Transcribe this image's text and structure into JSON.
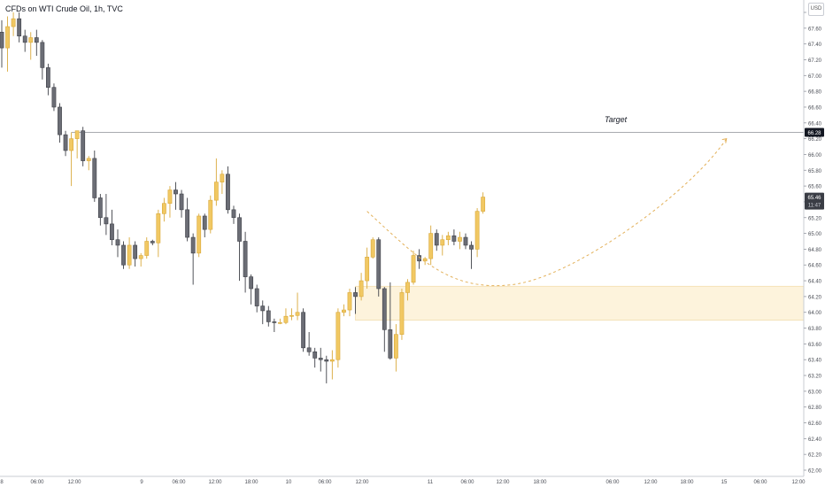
{
  "symbol": "CFDs on WTI Crude Oil, 1h, TVC",
  "currency": "USD",
  "target_label": "Target",
  "colors": {
    "up": "#f1c863",
    "up_border": "#d9a93a",
    "down": "#6b6d75",
    "down_border": "#3f4148",
    "zone_fill": "#fdf3dc",
    "zone_border": "#f2ddb0",
    "target_line": "#8c8f96",
    "projection": "#e3b15a",
    "price_badge": "#3a3d45",
    "target_badge": "#131722"
  },
  "chart_data": {
    "type": "candlestick",
    "title": "CFDs on WTI Crude Oil, 1h, TVC",
    "ylim": [
      62.0,
      67.8
    ],
    "y_ticks": [
      "62.00",
      "62.20",
      "62.40",
      "62.60",
      "62.80",
      "63.00",
      "63.20",
      "63.40",
      "63.60",
      "63.80",
      "64.00",
      "64.20",
      "64.40",
      "64.60",
      "64.80",
      "65.00",
      "65.20",
      "65.40",
      "65.60",
      "65.80",
      "66.00",
      "66.20",
      "66.40",
      "66.60",
      "66.80",
      "67.00",
      "67.20",
      "67.40",
      "67.60",
      "67.80"
    ],
    "x_ticks": [
      "8",
      "06:00",
      "12:00",
      "9",
      "06:00",
      "12:00",
      "18:00",
      "10",
      "06:00",
      "12:00",
      "11",
      "06:00",
      "12:00",
      "18:00",
      "06:00",
      "12:00",
      "18:00",
      "15",
      "06:00",
      "12:00"
    ],
    "target_price": "66.28",
    "current_price": "65.46",
    "countdown": "11:47",
    "demand_zone": {
      "low": 63.9,
      "high": 64.33
    },
    "candles": [
      {
        "o": 67.55,
        "h": 67.7,
        "l": 67.1,
        "c": 67.35
      },
      {
        "o": 67.35,
        "h": 67.75,
        "l": 67.05,
        "c": 67.62
      },
      {
        "o": 67.62,
        "h": 67.8,
        "l": 67.5,
        "c": 67.72
      },
      {
        "o": 67.72,
        "h": 67.8,
        "l": 67.42,
        "c": 67.5
      },
      {
        "o": 67.5,
        "h": 67.58,
        "l": 67.3,
        "c": 67.42
      },
      {
        "o": 67.42,
        "h": 67.55,
        "l": 67.2,
        "c": 67.48
      },
      {
        "o": 67.48,
        "h": 67.58,
        "l": 67.25,
        "c": 67.42
      },
      {
        "o": 67.42,
        "h": 67.45,
        "l": 66.95,
        "c": 67.1
      },
      {
        "o": 67.1,
        "h": 67.15,
        "l": 66.75,
        "c": 66.85
      },
      {
        "o": 66.85,
        "h": 66.9,
        "l": 66.55,
        "c": 66.6
      },
      {
        "o": 66.6,
        "h": 66.65,
        "l": 66.15,
        "c": 66.25
      },
      {
        "o": 66.25,
        "h": 66.3,
        "l": 65.98,
        "c": 66.05
      },
      {
        "o": 66.05,
        "h": 66.28,
        "l": 65.6,
        "c": 66.2
      },
      {
        "o": 66.2,
        "h": 66.28,
        "l": 65.95,
        "c": 66.3
      },
      {
        "o": 66.3,
        "h": 66.35,
        "l": 65.85,
        "c": 65.92
      },
      {
        "o": 65.92,
        "h": 65.98,
        "l": 65.8,
        "c": 65.95
      },
      {
        "o": 65.95,
        "h": 66.05,
        "l": 65.4,
        "c": 65.45
      },
      {
        "o": 65.45,
        "h": 65.5,
        "l": 65.1,
        "c": 65.2
      },
      {
        "o": 65.2,
        "h": 65.5,
        "l": 64.98,
        "c": 65.12
      },
      {
        "o": 65.12,
        "h": 65.3,
        "l": 64.85,
        "c": 64.92
      },
      {
        "o": 64.92,
        "h": 65.05,
        "l": 64.7,
        "c": 64.85
      },
      {
        "o": 64.85,
        "h": 64.9,
        "l": 64.55,
        "c": 64.6
      },
      {
        "o": 64.6,
        "h": 64.95,
        "l": 64.55,
        "c": 64.85
      },
      {
        "o": 64.85,
        "h": 64.9,
        "l": 64.58,
        "c": 64.68
      },
      {
        "o": 64.68,
        "h": 64.75,
        "l": 64.58,
        "c": 64.72
      },
      {
        "o": 64.72,
        "h": 64.95,
        "l": 64.68,
        "c": 64.9
      },
      {
        "o": 64.9,
        "h": 64.92,
        "l": 64.85,
        "c": 64.88
      },
      {
        "o": 64.88,
        "h": 65.3,
        "l": 64.7,
        "c": 65.25
      },
      {
        "o": 65.25,
        "h": 65.45,
        "l": 65.15,
        "c": 65.38
      },
      {
        "o": 65.38,
        "h": 65.6,
        "l": 65.2,
        "c": 65.55
      },
      {
        "o": 65.55,
        "h": 65.65,
        "l": 65.3,
        "c": 65.5
      },
      {
        "o": 65.5,
        "h": 65.55,
        "l": 65.2,
        "c": 65.3
      },
      {
        "o": 65.3,
        "h": 65.45,
        "l": 64.9,
        "c": 64.95
      },
      {
        "o": 64.95,
        "h": 65.0,
        "l": 64.35,
        "c": 64.75
      },
      {
        "o": 64.75,
        "h": 65.25,
        "l": 64.7,
        "c": 65.22
      },
      {
        "o": 65.22,
        "h": 65.25,
        "l": 64.95,
        "c": 65.05
      },
      {
        "o": 65.05,
        "h": 65.48,
        "l": 65.0,
        "c": 65.42
      },
      {
        "o": 65.42,
        "h": 65.95,
        "l": 65.35,
        "c": 65.65
      },
      {
        "o": 65.65,
        "h": 65.8,
        "l": 65.5,
        "c": 65.75
      },
      {
        "o": 65.75,
        "h": 65.85,
        "l": 65.25,
        "c": 65.3
      },
      {
        "o": 65.3,
        "h": 65.35,
        "l": 65.12,
        "c": 65.2
      },
      {
        "o": 65.2,
        "h": 65.25,
        "l": 64.4,
        "c": 64.9
      },
      {
        "o": 64.9,
        "h": 65.02,
        "l": 64.25,
        "c": 64.45
      },
      {
        "o": 64.45,
        "h": 64.48,
        "l": 64.1,
        "c": 64.3
      },
      {
        "o": 64.3,
        "h": 64.35,
        "l": 64.0,
        "c": 64.08
      },
      {
        "o": 64.08,
        "h": 64.15,
        "l": 63.85,
        "c": 64.02
      },
      {
        "o": 64.02,
        "h": 64.08,
        "l": 63.82,
        "c": 63.88
      },
      {
        "o": 63.88,
        "h": 63.92,
        "l": 63.75,
        "c": 63.87
      },
      {
        "o": 63.87,
        "h": 63.92,
        "l": 63.85,
        "c": 63.87
      },
      {
        "o": 63.87,
        "h": 64.05,
        "l": 63.85,
        "c": 63.95
      },
      {
        "o": 63.95,
        "h": 64.05,
        "l": 63.9,
        "c": 63.96
      },
      {
        "o": 63.96,
        "h": 64.25,
        "l": 63.9,
        "c": 64.0
      },
      {
        "o": 64.0,
        "h": 64.05,
        "l": 63.5,
        "c": 63.55
      },
      {
        "o": 63.55,
        "h": 63.75,
        "l": 63.45,
        "c": 63.5
      },
      {
        "o": 63.5,
        "h": 63.55,
        "l": 63.3,
        "c": 63.42
      },
      {
        "o": 63.42,
        "h": 63.55,
        "l": 63.25,
        "c": 63.4
      },
      {
        "o": 63.4,
        "h": 63.45,
        "l": 63.1,
        "c": 63.38
      },
      {
        "o": 63.38,
        "h": 63.52,
        "l": 63.15,
        "c": 63.4
      },
      {
        "o": 63.4,
        "h": 64.05,
        "l": 63.3,
        "c": 64.0
      },
      {
        "o": 64.0,
        "h": 64.1,
        "l": 63.95,
        "c": 64.03
      },
      {
        "o": 64.03,
        "h": 64.3,
        "l": 63.95,
        "c": 64.25
      },
      {
        "o": 64.25,
        "h": 64.32,
        "l": 63.98,
        "c": 64.2
      },
      {
        "o": 64.2,
        "h": 64.5,
        "l": 64.15,
        "c": 64.4
      },
      {
        "o": 64.4,
        "h": 64.82,
        "l": 64.3,
        "c": 64.7
      },
      {
        "o": 64.7,
        "h": 64.95,
        "l": 64.68,
        "c": 64.92
      },
      {
        "o": 64.92,
        "h": 64.95,
        "l": 64.2,
        "c": 64.3
      },
      {
        "o": 64.3,
        "h": 64.32,
        "l": 63.5,
        "c": 63.78
      },
      {
        "o": 63.78,
        "h": 64.38,
        "l": 63.4,
        "c": 63.42
      },
      {
        "o": 63.42,
        "h": 63.85,
        "l": 63.25,
        "c": 63.72
      },
      {
        "o": 63.72,
        "h": 64.3,
        "l": 63.65,
        "c": 64.25
      },
      {
        "o": 64.25,
        "h": 64.42,
        "l": 64.15,
        "c": 64.38
      },
      {
        "o": 64.38,
        "h": 64.78,
        "l": 64.35,
        "c": 64.72
      },
      {
        "o": 64.72,
        "h": 64.8,
        "l": 64.55,
        "c": 64.65
      },
      {
        "o": 64.65,
        "h": 64.7,
        "l": 64.6,
        "c": 64.68
      },
      {
        "o": 64.68,
        "h": 65.1,
        "l": 64.6,
        "c": 65.0
      },
      {
        "o": 65.0,
        "h": 65.05,
        "l": 64.78,
        "c": 64.85
      },
      {
        "o": 64.85,
        "h": 64.98,
        "l": 64.72,
        "c": 64.92
      },
      {
        "o": 64.92,
        "h": 65.02,
        "l": 64.85,
        "c": 64.97
      },
      {
        "o": 64.97,
        "h": 65.05,
        "l": 64.85,
        "c": 64.9
      },
      {
        "o": 64.9,
        "h": 65.02,
        "l": 64.8,
        "c": 64.95
      },
      {
        "o": 64.95,
        "h": 65.0,
        "l": 64.8,
        "c": 64.85
      },
      {
        "o": 64.85,
        "h": 64.9,
        "l": 64.55,
        "c": 64.8
      },
      {
        "o": 64.8,
        "h": 65.32,
        "l": 64.7,
        "c": 65.28
      },
      {
        "o": 65.28,
        "h": 65.52,
        "l": 65.25,
        "c": 65.46
      }
    ],
    "projection": [
      {
        "x": 63,
        "y": 65.28
      },
      {
        "x": 88,
        "y": 64.35
      },
      {
        "x": 125,
        "y": 66.2
      }
    ]
  }
}
